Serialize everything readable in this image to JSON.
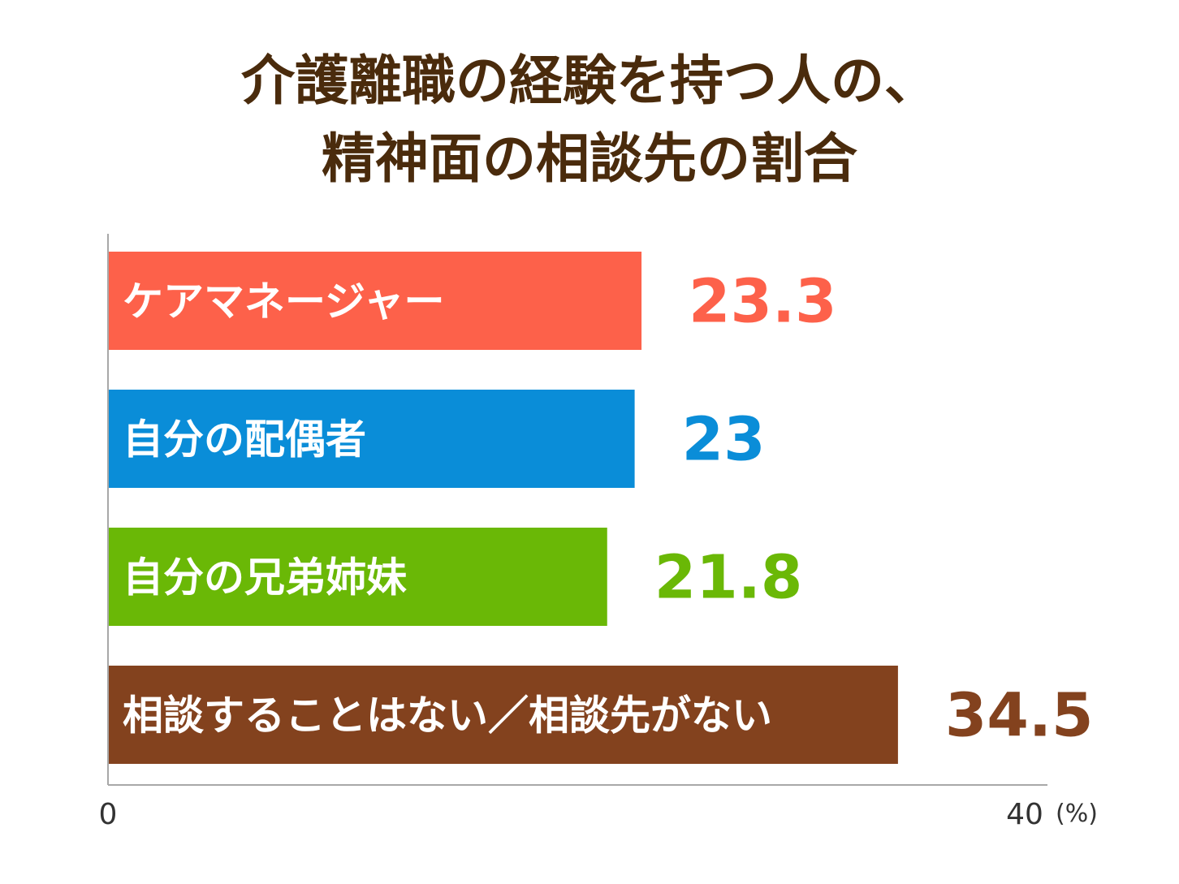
{
  "chart_data": {
    "type": "bar",
    "orientation": "horizontal",
    "title": "介護離職の経験を持つ人の、\n精神面の相談先の割合",
    "title_lines": [
      "介護離職の経験を持つ人の、",
      "精神面の相談先の割合"
    ],
    "categories": [
      "ケアマネージャー",
      "自分の配偶者",
      "自分の兄弟姉妹",
      "相談することはない／相談先がない"
    ],
    "values": [
      23.3,
      23,
      21.8,
      34.5
    ],
    "value_labels": [
      "23.3",
      "23",
      "21.8",
      "34.5"
    ],
    "colors": [
      "#fd614a",
      "#0a8dd8",
      "#6ab806",
      "#83421e"
    ],
    "xlim": [
      0,
      40
    ],
    "x_tick_labels": [
      "0",
      "40"
    ],
    "unit": "(%)",
    "title_color": "#4a2b0c",
    "grid": false,
    "legend": "none"
  }
}
